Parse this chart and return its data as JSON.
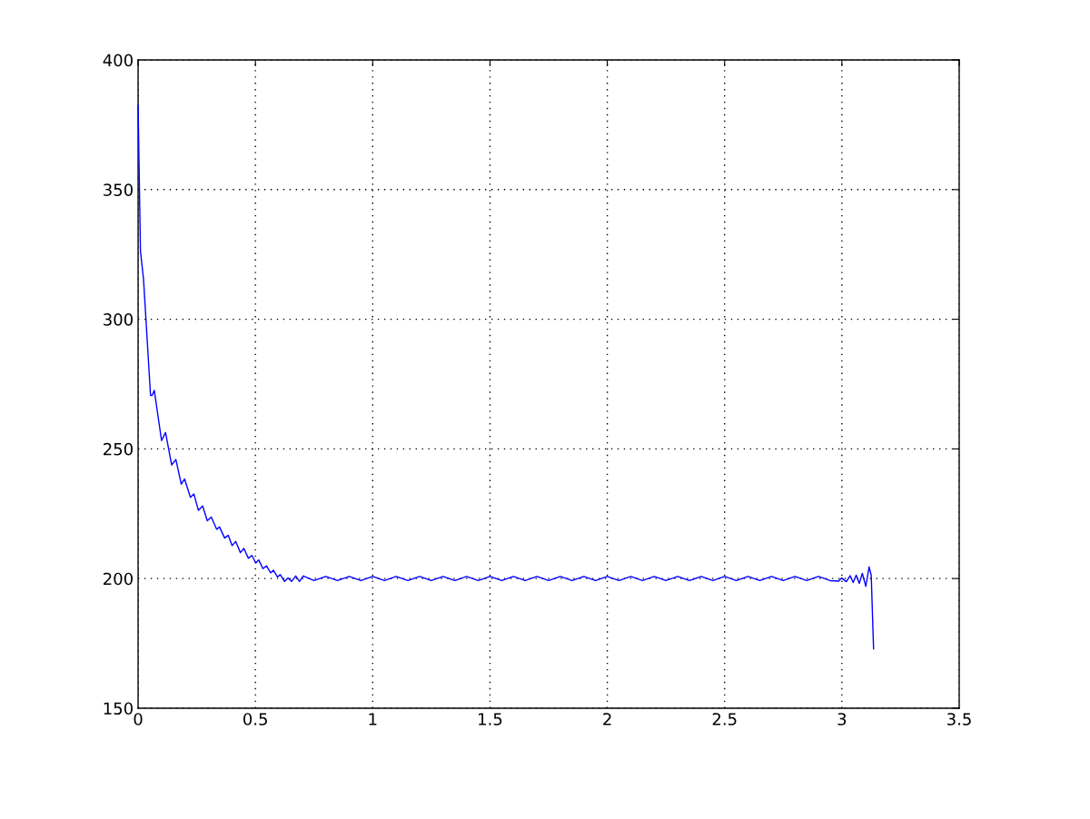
{
  "chart_data": {
    "type": "line",
    "series": [
      {
        "color": "#0000ff",
        "x": [
          0,
          0.01,
          0.023,
          0.053,
          0.06,
          0.069,
          0.1,
          0.117,
          0.143,
          0.161,
          0.184,
          0.198,
          0.223,
          0.238,
          0.257,
          0.275,
          0.295,
          0.312,
          0.335,
          0.347,
          0.369,
          0.384,
          0.401,
          0.416,
          0.436,
          0.451,
          0.47,
          0.485,
          0.502,
          0.514,
          0.532,
          0.547,
          0.565,
          0.577,
          0.594,
          0.606,
          0.624,
          0.639,
          0.654,
          0.672,
          0.688,
          0.704,
          0.75,
          0.8,
          0.85,
          0.9,
          0.95,
          1.0,
          1.05,
          1.1,
          1.15,
          1.2,
          1.25,
          1.3,
          1.35,
          1.4,
          1.45,
          1.5,
          1.55,
          1.6,
          1.65,
          1.7,
          1.75,
          1.8,
          1.85,
          1.9,
          1.95,
          2.0,
          2.05,
          2.1,
          2.15,
          2.2,
          2.25,
          2.3,
          2.35,
          2.4,
          2.45,
          2.5,
          2.55,
          2.6,
          2.65,
          2.7,
          2.75,
          2.8,
          2.85,
          2.9,
          2.95,
          2.986,
          2.999,
          3.019,
          3.035,
          3.048,
          3.061,
          3.074,
          3.087,
          3.102,
          3.116,
          3.125,
          3.135
        ],
        "values": [
          382.6,
          326.3,
          315.6,
          270.6,
          270.6,
          272.6,
          253.2,
          256.3,
          243.8,
          245.9,
          236.4,
          238.4,
          231.3,
          232.6,
          226.3,
          228.0,
          222.3,
          223.7,
          219.0,
          219.9,
          215.6,
          216.7,
          212.7,
          214.3,
          210.0,
          211.6,
          207.8,
          208.9,
          206.0,
          207.2,
          203.8,
          204.9,
          202.2,
          203.2,
          200.6,
          201.5,
          198.9,
          200.2,
          198.9,
          201.0,
          198.9,
          201.0,
          199.2,
          200.8,
          199.2,
          200.8,
          199.2,
          200.8,
          199.2,
          200.8,
          199.2,
          200.8,
          199.2,
          200.8,
          199.2,
          200.8,
          199.2,
          200.8,
          199.2,
          200.8,
          199.2,
          200.8,
          199.2,
          200.8,
          199.2,
          200.8,
          199.2,
          200.8,
          199.2,
          200.8,
          199.2,
          200.8,
          199.2,
          200.8,
          199.2,
          200.8,
          199.2,
          200.8,
          199.2,
          200.8,
          199.2,
          200.8,
          199.2,
          200.8,
          199.2,
          200.8,
          199.2,
          199.0,
          200.2,
          198.8,
          201.1,
          198.5,
          201.3,
          198.1,
          202.0,
          197.0,
          204.5,
          201.3,
          172.8
        ]
      }
    ],
    "xlim": [
      0,
      3.5
    ],
    "xticks": [
      0,
      0.5,
      1,
      1.5,
      2,
      2.5,
      3,
      3.5
    ],
    "ylim": [
      150,
      400
    ],
    "yticks": [
      150,
      200,
      250,
      300,
      350,
      400
    ],
    "grid": true
  }
}
